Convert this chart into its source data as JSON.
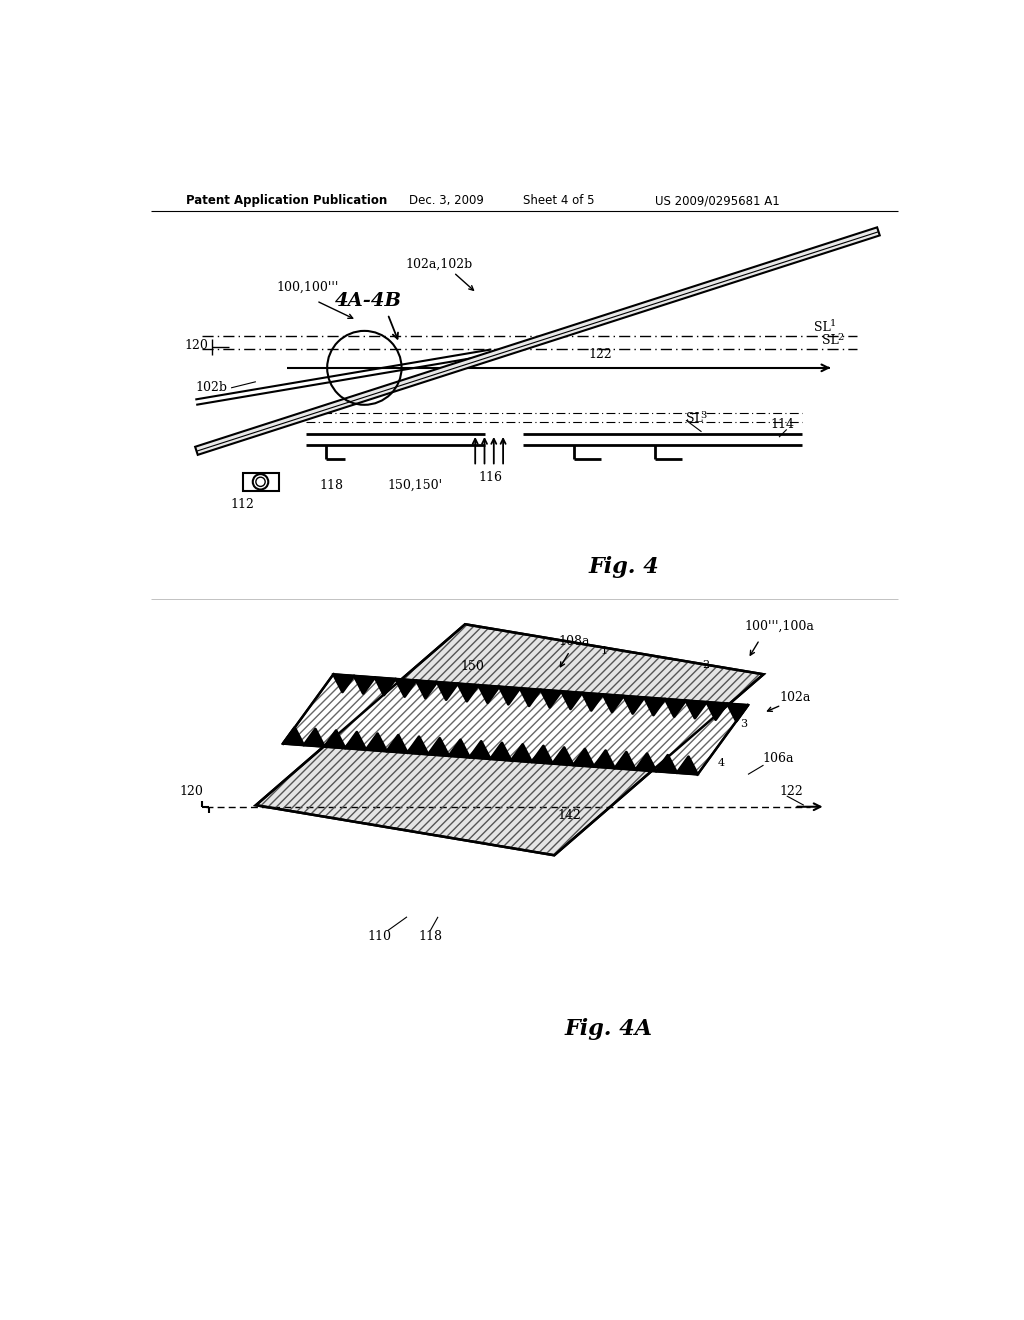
{
  "bg_color": "#ffffff",
  "header_text": "Patent Application Publication",
  "header_date": "Dec. 3, 2009",
  "header_sheet": "Sheet 4 of 5",
  "header_patent": "US 2009/0295681 A1",
  "fig4_label": "Fig. 4",
  "fig4a_label": "Fig. 4A"
}
